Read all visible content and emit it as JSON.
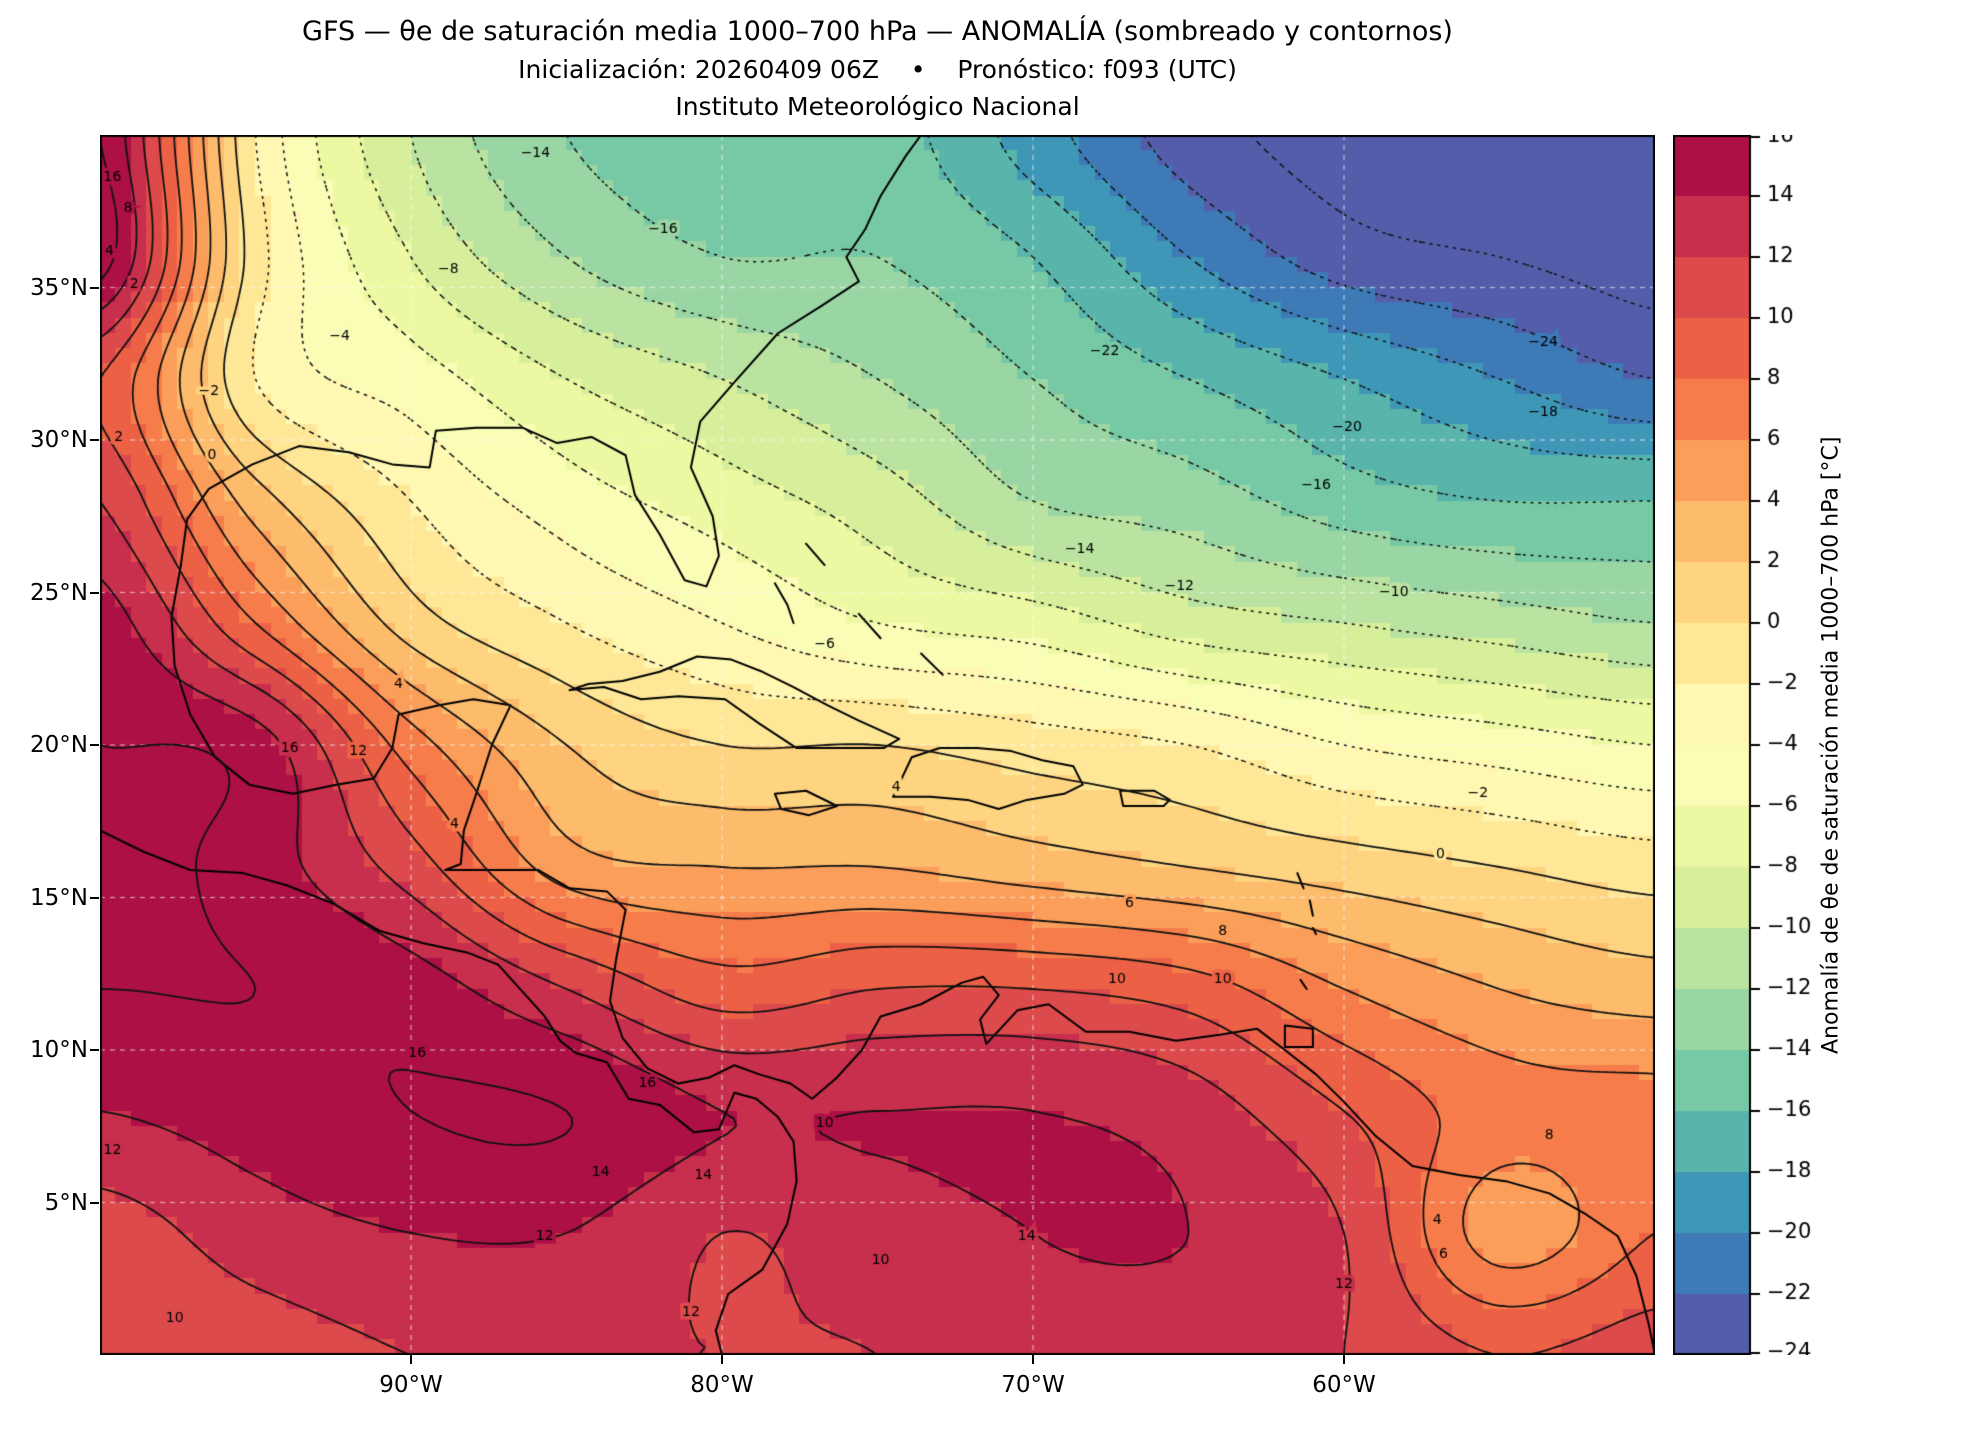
{
  "title": {
    "line1": "GFS — θe de saturación media 1000–700 hPa — ANOMALÍA (sombreado y contornos)",
    "line2": "Inicialización: 20260409 06Z    •    Pronóstico: f093 (UTC)",
    "line3": "Instituto Meteorológico Nacional"
  },
  "axes": {
    "x_ticks": [
      {
        "label": "90°W",
        "lon": -90
      },
      {
        "label": "80°W",
        "lon": -80
      },
      {
        "label": "70°W",
        "lon": -70
      },
      {
        "label": "60°W",
        "lon": -60
      }
    ],
    "y_ticks": [
      {
        "label": "35°N",
        "lat": 35
      },
      {
        "label": "30°N",
        "lat": 30
      },
      {
        "label": "25°N",
        "lat": 25
      },
      {
        "label": "20°N",
        "lat": 20
      },
      {
        "label": "15°N",
        "lat": 15
      },
      {
        "label": "10°N",
        "lat": 10
      },
      {
        "label": "5°N",
        "lat": 5
      }
    ],
    "lon_range": [
      -100,
      -50
    ],
    "lat_range": [
      0,
      40
    ],
    "grid_lons": [
      -90,
      -80,
      -70,
      -60
    ],
    "grid_lats": [
      5,
      10,
      15,
      20,
      25,
      30,
      35
    ]
  },
  "colorbar": {
    "label": "Anomalía de θe de saturación media 1000–700 hPa [°C]",
    "tick_values": [
      16,
      14,
      12,
      10,
      8,
      6,
      4,
      2,
      0,
      -2,
      -4,
      -6,
      -8,
      -10,
      -12,
      -14,
      -16,
      -18,
      -20,
      -22,
      -24
    ]
  },
  "chart_data": {
    "type": "heatmap",
    "meta": {
      "model": "GFS",
      "variable": "θe de saturación media 1000–700 hPa",
      "mode": "ANOMALÍA (sombreado y contornos)",
      "init": "20260409 06Z",
      "forecast": "f093 (UTC)",
      "org": "Instituto Meteorológico Nacional",
      "units": "°C"
    },
    "levels": {
      "min": -24,
      "max": 16,
      "step": 2
    },
    "colormap": {
      "name": "Spectral_r",
      "anchors": [
        "#5e4fa2",
        "#3288bd",
        "#66c2a5",
        "#abdda4",
        "#e6f598",
        "#ffffbf",
        "#fee08b",
        "#fdae61",
        "#f46d43",
        "#d53e4f",
        "#9e0142"
      ]
    },
    "grid": {
      "lons": [
        -100,
        -95,
        -90,
        -85,
        -80,
        -75,
        -70,
        -65,
        -60,
        -55,
        -50
      ],
      "lats": [
        40,
        36,
        32,
        28,
        24,
        20,
        16,
        12,
        8,
        4,
        0
      ],
      "values": [
        [
          16,
          -2,
          -10,
          -14,
          -15,
          -15,
          -19,
          -23,
          -25,
          -26,
          -26
        ],
        [
          17,
          -1,
          -8,
          -12,
          -14,
          -14,
          -16,
          -20,
          -23,
          -24,
          -25
        ],
        [
          10,
          -2,
          -5,
          -8,
          -10,
          -12,
          -14,
          -16,
          -18,
          -20,
          -22
        ],
        [
          12,
          3,
          -2,
          -5,
          -7,
          -9,
          -12,
          -13,
          -15,
          -16,
          -16
        ],
        [
          15,
          8,
          1,
          -2,
          -4,
          -6,
          -7,
          -9,
          -10,
          -11,
          -12
        ],
        [
          16,
          15,
          7,
          2,
          0,
          0,
          -1,
          -2,
          -4,
          -5,
          -6
        ],
        [
          17,
          15,
          11,
          5,
          4,
          4,
          3,
          2,
          1,
          0,
          -1
        ],
        [
          16,
          16,
          15,
          12,
          9,
          10,
          10,
          9,
          6,
          4,
          3
        ],
        [
          14,
          15,
          16,
          16,
          14,
          14,
          14,
          13,
          10,
          7,
          7
        ],
        [
          11,
          13,
          14,
          14,
          12,
          13,
          14,
          14,
          12,
          5,
          8
        ],
        [
          10,
          11,
          12,
          12,
          12,
          12,
          13,
          13,
          12,
          10,
          11
        ]
      ]
    },
    "contour_labels": [
      [
        16,
        -99.6,
        38.6
      ],
      [
        8,
        -99.1,
        37.6
      ],
      [
        4,
        -99.7,
        36.2
      ],
      [
        2,
        -98.9,
        35.1
      ],
      [
        -14,
        -86,
        39.4
      ],
      [
        -16,
        -81.9,
        36.9
      ],
      [
        -8,
        -88.8,
        35.6
      ],
      [
        -4,
        -92.3,
        33.4
      ],
      [
        -2,
        -96.5,
        31.6
      ],
      [
        2,
        -99.4,
        30.1
      ],
      [
        0,
        -96.4,
        29.5
      ],
      [
        -22,
        -67.7,
        32.9
      ],
      [
        -24,
        -53.6,
        33.2
      ],
      [
        -18,
        -53.6,
        30.9
      ],
      [
        -20,
        -59.9,
        30.4
      ],
      [
        -16,
        -60.9,
        28.5
      ],
      [
        -14,
        -68.5,
        26.4
      ],
      [
        -12,
        -65.3,
        25.2
      ],
      [
        -10,
        -58.4,
        25
      ],
      [
        -6,
        -76.7,
        23.3
      ],
      [
        4,
        -90.4,
        22
      ],
      [
        16,
        -93.9,
        19.9
      ],
      [
        12,
        -91.7,
        19.8
      ],
      [
        4,
        -88.6,
        17.4
      ],
      [
        4,
        -74.4,
        18.6
      ],
      [
        -2,
        -55.7,
        18.4
      ],
      [
        0,
        -56.9,
        16.4
      ],
      [
        6,
        -66.9,
        14.8
      ],
      [
        8,
        -63.9,
        13.9
      ],
      [
        10,
        -67.3,
        12.3
      ],
      [
        10,
        -63.9,
        12.3
      ],
      [
        16,
        -89.8,
        9.9
      ],
      [
        16,
        -82.4,
        8.9
      ],
      [
        10,
        -76.7,
        7.6
      ],
      [
        8,
        -53.4,
        7.2
      ],
      [
        12,
        -99.6,
        6.7
      ],
      [
        14,
        -80.6,
        5.9
      ],
      [
        14,
        -83.9,
        6
      ],
      [
        4,
        -57,
        4.4
      ],
      [
        6,
        -56.8,
        3.3
      ],
      [
        14,
        -70.2,
        3.9
      ],
      [
        12,
        -85.7,
        3.9
      ],
      [
        10,
        -74.9,
        3.1
      ],
      [
        12,
        -60,
        2.3
      ],
      [
        10,
        -97.6,
        1.2
      ],
      [
        12,
        -81,
        1.4
      ]
    ],
    "coastlines": [
      [
        [
          -97.4,
          25.9
        ],
        [
          -97.2,
          27.4
        ],
        [
          -96.5,
          28.4
        ],
        [
          -95.1,
          29.2
        ],
        [
          -93.6,
          29.8
        ],
        [
          -92,
          29.6
        ],
        [
          -90.6,
          29.2
        ],
        [
          -89.4,
          29.1
        ],
        [
          -89.2,
          30.3
        ],
        [
          -87.9,
          30.4
        ],
        [
          -86.4,
          30.4
        ],
        [
          -85.3,
          29.9
        ],
        [
          -84.2,
          30.1
        ],
        [
          -83.1,
          29.5
        ],
        [
          -82.8,
          28.2
        ],
        [
          -82,
          26.9
        ],
        [
          -81.2,
          25.4
        ],
        [
          -80.5,
          25.2
        ],
        [
          -80.1,
          26.2
        ],
        [
          -80.3,
          27.5
        ],
        [
          -81,
          29.1
        ],
        [
          -80.7,
          30.6
        ],
        [
          -79.6,
          31.9
        ],
        [
          -78.2,
          33.5
        ],
        [
          -76.8,
          34.4
        ],
        [
          -75.6,
          35.2
        ],
        [
          -76,
          36
        ],
        [
          -75.4,
          36.9
        ],
        [
          -74.9,
          38
        ],
        [
          -74.1,
          39.3
        ],
        [
          -73.6,
          40
        ]
      ],
      [
        [
          -97.4,
          25.9
        ],
        [
          -97.7,
          24.2
        ],
        [
          -97.6,
          22.6
        ],
        [
          -97.1,
          21
        ],
        [
          -96.3,
          19.6
        ],
        [
          -95.2,
          18.7
        ],
        [
          -93.8,
          18.4
        ],
        [
          -92.4,
          18.7
        ],
        [
          -91.2,
          18.9
        ],
        [
          -90.6,
          19.9
        ],
        [
          -90.4,
          21
        ],
        [
          -89.1,
          21.3
        ],
        [
          -88,
          21.5
        ],
        [
          -86.8,
          21.3
        ],
        [
          -87.4,
          20
        ],
        [
          -87.9,
          18.4
        ],
        [
          -88.3,
          17.2
        ],
        [
          -88.4,
          16.1
        ],
        [
          -88.9,
          15.9
        ],
        [
          -87.3,
          15.9
        ],
        [
          -85.9,
          15.9
        ],
        [
          -84.9,
          15.3
        ],
        [
          -83.7,
          15.2
        ],
        [
          -83.1,
          14.6
        ],
        [
          -83.4,
          13
        ],
        [
          -83.6,
          11.6
        ],
        [
          -83.2,
          10.4
        ],
        [
          -82.4,
          9.4
        ],
        [
          -81.4,
          8.9
        ],
        [
          -80.4,
          9.1
        ],
        [
          -79.6,
          9.5
        ],
        [
          -78.8,
          9.2
        ],
        [
          -77.8,
          8.9
        ],
        [
          -77.1,
          8.4
        ],
        [
          -76.3,
          9.1
        ],
        [
          -75.5,
          10
        ],
        [
          -74.9,
          11.1
        ],
        [
          -73.6,
          11.5
        ],
        [
          -72.3,
          12.2
        ],
        [
          -71.6,
          12.4
        ],
        [
          -71.1,
          11.8
        ],
        [
          -71.7,
          11
        ],
        [
          -71.5,
          10.2
        ],
        [
          -70.5,
          11.3
        ],
        [
          -69.5,
          11.5
        ],
        [
          -68.3,
          10.6
        ],
        [
          -66.9,
          10.6
        ],
        [
          -65.4,
          10.3
        ],
        [
          -64,
          10.5
        ],
        [
          -62.8,
          10.7
        ],
        [
          -61.9,
          10
        ],
        [
          -60.9,
          9.2
        ],
        [
          -60,
          8.3
        ],
        [
          -59,
          7.2
        ],
        [
          -57.8,
          6.2
        ],
        [
          -56.3,
          5.9
        ],
        [
          -54.8,
          5.7
        ],
        [
          -53.4,
          5.3
        ],
        [
          -52.2,
          4.6
        ],
        [
          -51.2,
          3.9
        ],
        [
          -50.6,
          2.6
        ],
        [
          -50.2,
          1
        ],
        [
          -50,
          0
        ]
      ],
      [
        [
          -100,
          17.2
        ],
        [
          -98.6,
          16.5
        ],
        [
          -97.1,
          15.9
        ],
        [
          -95.4,
          15.8
        ],
        [
          -94,
          15.4
        ],
        [
          -92.5,
          14.8
        ],
        [
          -91,
          13.9
        ],
        [
          -89.6,
          13.5
        ],
        [
          -88.2,
          13.2
        ],
        [
          -87.2,
          12.8
        ],
        [
          -86.4,
          11.9
        ],
        [
          -85.7,
          11.1
        ],
        [
          -85.2,
          10.3
        ],
        [
          -84.7,
          9.9
        ],
        [
          -83.7,
          9.6
        ],
        [
          -83,
          8.4
        ],
        [
          -82,
          8.2
        ],
        [
          -80.9,
          7.3
        ],
        [
          -80.1,
          7.4
        ],
        [
          -79.6,
          8.6
        ],
        [
          -78.9,
          8.4
        ],
        [
          -78.2,
          7.8
        ],
        [
          -77.7,
          7
        ],
        [
          -77.6,
          5.7
        ],
        [
          -77.9,
          4.3
        ],
        [
          -78.7,
          2.8
        ],
        [
          -79.8,
          2
        ],
        [
          -80.2,
          0.8
        ],
        [
          -80,
          0
        ]
      ],
      [
        [
          -84.9,
          21.8
        ],
        [
          -84.3,
          22
        ],
        [
          -83.2,
          22.1
        ],
        [
          -82,
          22.4
        ],
        [
          -80.8,
          22.9
        ],
        [
          -79.7,
          22.8
        ],
        [
          -78.7,
          22.4
        ],
        [
          -77.7,
          21.9
        ],
        [
          -76.6,
          21.3
        ],
        [
          -75.6,
          20.8
        ],
        [
          -74.3,
          20.2
        ],
        [
          -74.8,
          19.9
        ],
        [
          -76.2,
          19.9
        ],
        [
          -77.6,
          19.9
        ],
        [
          -78.8,
          20.7
        ],
        [
          -79.9,
          21.5
        ],
        [
          -81.4,
          21.6
        ],
        [
          -82.6,
          21.5
        ],
        [
          -83.8,
          21.9
        ],
        [
          -84.9,
          21.8
        ]
      ],
      [
        [
          -74.5,
          18.3
        ],
        [
          -73.3,
          18.3
        ],
        [
          -72.1,
          18.2
        ],
        [
          -71.1,
          17.9
        ],
        [
          -70.2,
          18.2
        ],
        [
          -69,
          18.4
        ],
        [
          -68.4,
          18.7
        ],
        [
          -68.7,
          19.3
        ],
        [
          -69.7,
          19.5
        ],
        [
          -70.7,
          19.8
        ],
        [
          -71.8,
          19.9
        ],
        [
          -73,
          19.9
        ],
        [
          -73.9,
          19.6
        ],
        [
          -74.5,
          18.3
        ]
      ],
      [
        [
          -78.3,
          18.4
        ],
        [
          -77.3,
          18.5
        ],
        [
          -76.3,
          18
        ],
        [
          -77.2,
          17.7
        ],
        [
          -78.1,
          17.9
        ],
        [
          -78.3,
          18.4
        ]
      ],
      [
        [
          -67.2,
          18.5
        ],
        [
          -66.1,
          18.5
        ],
        [
          -65.6,
          18.2
        ],
        [
          -65.8,
          18
        ],
        [
          -67.1,
          18
        ],
        [
          -67.2,
          18.5
        ]
      ],
      [
        [
          -78.3,
          25.3
        ],
        [
          -77.9,
          24.6
        ],
        [
          -77.7,
          24
        ]
      ],
      [
        [
          -77.3,
          26.6
        ],
        [
          -76.7,
          25.9
        ]
      ],
      [
        [
          -75.6,
          24.3
        ],
        [
          -74.9,
          23.5
        ]
      ],
      [
        [
          -73.6,
          23
        ],
        [
          -72.9,
          22.3
        ]
      ],
      [
        [
          -61.5,
          15.8
        ],
        [
          -61.3,
          15.3
        ]
      ],
      [
        [
          -61.1,
          14.9
        ],
        [
          -61,
          14.4
        ]
      ],
      [
        [
          -61,
          14
        ],
        [
          -60.9,
          13.8
        ]
      ],
      [
        [
          -61.4,
          12.3
        ],
        [
          -61.2,
          12
        ]
      ],
      [
        [
          -61.9,
          10.8
        ],
        [
          -61,
          10.7
        ],
        [
          -61,
          10.1
        ],
        [
          -61.9,
          10.1
        ],
        [
          -61.9,
          10.8
        ]
      ]
    ]
  }
}
